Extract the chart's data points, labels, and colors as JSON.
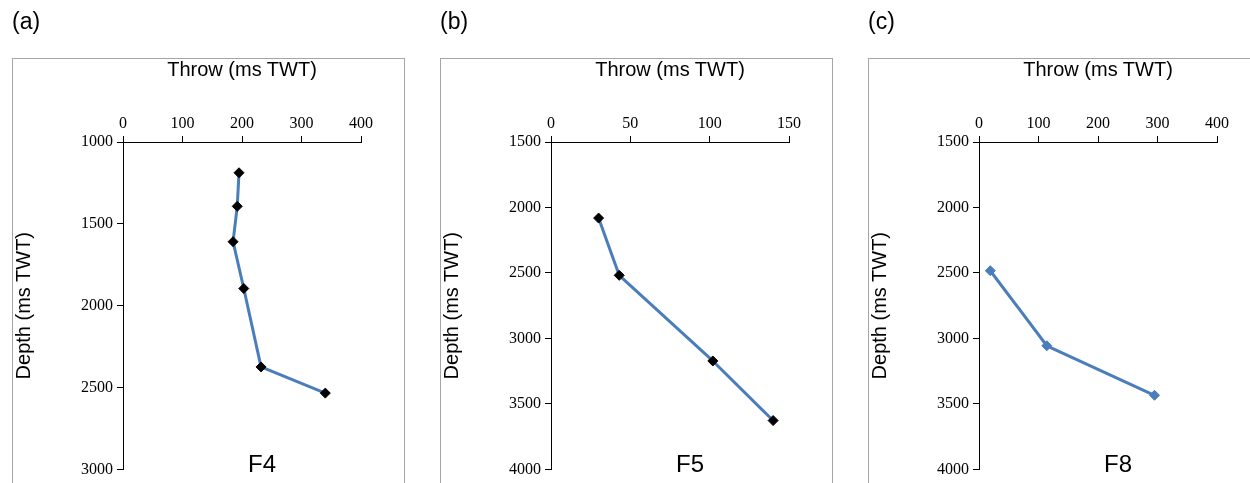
{
  "chart_data": [
    {
      "type": "line",
      "title": "(a)",
      "xlabel": "Throw (ms TWT)",
      "ylabel": "Depth (ms TWT)",
      "annotations": [
        "F4"
      ],
      "xlim": [
        0,
        400
      ],
      "xticks": [
        0,
        100,
        200,
        300,
        400
      ],
      "ylim": [
        3000,
        1000
      ],
      "yticks": [
        1000,
        1500,
        2000,
        2500,
        3000
      ],
      "grid": false,
      "legend": false,
      "marker": "diamond",
      "line_style": "solid",
      "series": [
        {
          "color": "#4a7ebb",
          "colors": [
            "#000000",
            "#000000",
            "#000000",
            "#000000",
            "#000000",
            "#000000"
          ],
          "x": [
            195,
            192,
            185,
            203,
            232,
            340
          ],
          "values": [
            1188,
            1393,
            1609,
            1895,
            2374,
            2534
          ]
        }
      ]
    },
    {
      "type": "line",
      "title": "(b)",
      "xlabel": "Throw (ms TWT)",
      "ylabel": "Depth (ms TWT)",
      "annotations": [
        "F5"
      ],
      "xlim": [
        0,
        150
      ],
      "xticks": [
        0,
        50,
        100,
        150
      ],
      "ylim": [
        4000,
        1500
      ],
      "yticks": [
        1500,
        2000,
        2500,
        3000,
        3500,
        4000
      ],
      "grid": false,
      "legend": false,
      "marker": "diamond",
      "line_style": "solid",
      "series": [
        {
          "color": "#4a7ebb",
          "colors": [
            "#000000",
            "#000000",
            "#000000",
            "#000000"
          ],
          "x": [
            30,
            43,
            102,
            140
          ],
          "values": [
            2081,
            2518,
            3172,
            3627
          ]
        }
      ]
    },
    {
      "type": "line",
      "title": "(c)",
      "xlabel": "Throw (ms TWT)",
      "ylabel": "Depth (ms TWT)",
      "annotations": [
        "F8"
      ],
      "xlim": [
        0,
        400
      ],
      "xticks": [
        0,
        100,
        200,
        300,
        400
      ],
      "ylim": [
        4000,
        1500
      ],
      "yticks": [
        1500,
        2000,
        2500,
        3000,
        3500,
        4000
      ],
      "grid": false,
      "legend": false,
      "marker": "diamond",
      "line_style": "solid",
      "series": [
        {
          "color": "#4a7ebb",
          "colors": [
            "#4a7ebb",
            "#4a7ebb",
            "#4a7ebb"
          ],
          "x": [
            19,
            114,
            295
          ],
          "values": [
            2483,
            3056,
            3434
          ]
        }
      ]
    }
  ]
}
